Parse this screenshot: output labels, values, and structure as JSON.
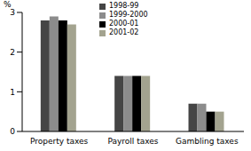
{
  "chart_data": {
    "type": "bar",
    "y_label": "%",
    "categories": [
      "Property taxes",
      "Payroll taxes",
      "Gambling taxes"
    ],
    "series": [
      {
        "name": "1998-99",
        "color": "#454545",
        "values": [
          2.8,
          1.4,
          0.7
        ]
      },
      {
        "name": "1999-2000",
        "color": "#8c8c8c",
        "values": [
          2.9,
          1.4,
          0.7
        ]
      },
      {
        "name": "2000-01",
        "color": "#000000",
        "values": [
          2.8,
          1.4,
          0.5
        ]
      },
      {
        "name": "2001-02",
        "color": "#a3a38f",
        "values": [
          2.7,
          1.4,
          0.5
        ]
      }
    ],
    "ylim": [
      0,
      3
    ],
    "yticks": [
      0,
      1,
      2,
      3
    ],
    "grid": false,
    "legend": "upper center"
  }
}
